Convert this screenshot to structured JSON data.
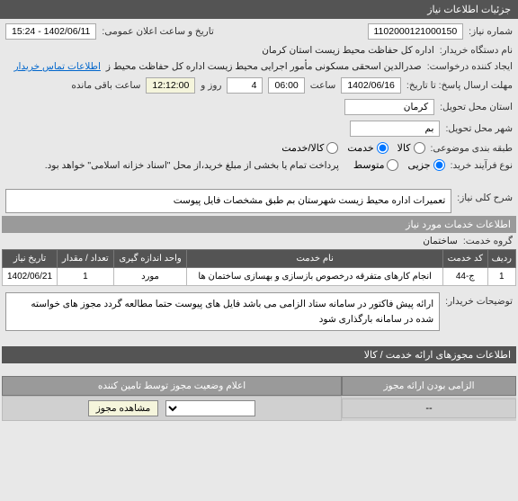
{
  "header": {
    "title": "جزئیات اطلاعات نیاز"
  },
  "fields": {
    "need_no_label": "شماره نیاز:",
    "need_no": "1102000121000150",
    "announce_label": "تاریخ و ساعت اعلان عمومی:",
    "announce_value": "1402/06/11 - 15:24",
    "buyer_org_label": "نام دستگاه خریدار:",
    "buyer_org": "اداره کل حفاظت محیط زیست استان کرمان",
    "creator_label": "ایجاد کننده درخواست:",
    "creator": "صدرالدین اسحقی مسکونی مأمور اجرایی محیط زیست اداره کل حفاظت محیط ز",
    "contact_link": "اطلاعات تماس خریدار",
    "deadline_label": "مهلت ارسال پاسخ: تا تاریخ:",
    "deadline_date": "1402/06/16",
    "time_label": "ساعت",
    "deadline_time": "06:00",
    "days_count": "4",
    "days_and": "روز و",
    "remain_time": "12:12:00",
    "remain_label": "ساعت باقی مانده",
    "delivery_province_label": "استان محل تحویل:",
    "delivery_province": "کرمان",
    "delivery_city_label": "شهر محل تحویل:",
    "delivery_city": "بم",
    "subject_class_label": "طبقه بندی موضوعی:",
    "radio_goods": "کالا",
    "radio_service": "خدمت",
    "radio_goods_service": "کالا/خدمت",
    "process_type_label": "نوع فرآیند خرید:",
    "radio_partial": "جزیی",
    "radio_medium": "متوسط",
    "payment_note": "پرداخت تمام یا بخشی از مبلغ خرید،از محل \"اسناد خزانه اسلامی\" خواهد بود.",
    "general_desc_label": "شرح کلی نیاز:",
    "general_desc": "تعمیرات اداره محیط زیست شهرستان بم طبق مشخصات فایل پیوست",
    "services_info_title": "اطلاعات خدمات مورد نیاز",
    "service_group_label": "گروه خدمت:",
    "service_group": "ساختمان",
    "buyer_notes_label": "توضیحات خریدار:",
    "buyer_notes": "ارائه پیش فاکتور در سامانه ستاد الزامی می باشد فایل های پیوست حتما مطالعه گردد مجوز های خواسته شده در سامانه بارگذاری شود",
    "permits_title": "اطلاعات مجوزهای ارائه خدمت / کالا"
  },
  "services_table": {
    "columns": [
      "ردیف",
      "کد خدمت",
      "نام خدمت",
      "واحد اندازه گیری",
      "تعداد / مقدار",
      "تاریخ نیاز"
    ],
    "rows": [
      [
        "1",
        "ج-44",
        "انجام کارهای متفرقه درخصوص بازسازی و بهسازی ساختمان ها",
        "مورد",
        "1",
        "1402/06/21"
      ]
    ]
  },
  "permits": {
    "col_required": "الزامی بودن ارائه مجوز",
    "col_status": "اعلام وضعیت مجوز توسط تامین کننده",
    "required_value": "--",
    "select_placeholder": "",
    "view_btn": "مشاهده مجوز"
  },
  "colors": {
    "header_bg": "#545454",
    "band_bg": "#9a9a9a",
    "page_bg": "#e8e8e8",
    "highlight": "#f5f5dc"
  }
}
